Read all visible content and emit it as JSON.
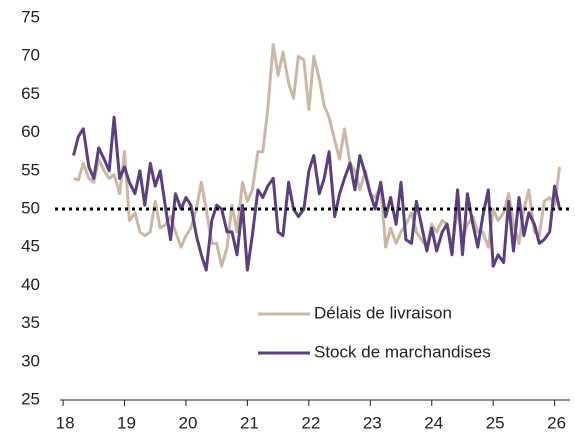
{
  "chart_data": {
    "type": "line",
    "x": [
      18.17,
      18.25,
      18.33,
      18.42,
      18.5,
      18.58,
      18.67,
      18.75,
      18.83,
      18.92,
      19.0,
      19.08,
      19.17,
      19.25,
      19.33,
      19.42,
      19.5,
      19.58,
      19.67,
      19.75,
      19.83,
      19.92,
      20.0,
      20.08,
      20.17,
      20.25,
      20.33,
      20.42,
      20.5,
      20.58,
      20.67,
      20.75,
      20.83,
      20.92,
      21.0,
      21.08,
      21.17,
      21.25,
      21.33,
      21.42,
      21.5,
      21.58,
      21.67,
      21.75,
      21.83,
      21.92,
      22.0,
      22.08,
      22.17,
      22.25,
      22.33,
      22.42,
      22.5,
      22.58,
      22.67,
      22.75,
      22.83,
      22.92,
      23.0,
      23.08,
      23.17,
      23.25,
      23.33,
      23.42,
      23.5,
      23.58,
      23.67,
      23.75,
      23.83,
      23.92,
      24.0,
      24.08,
      24.17,
      24.25,
      24.33,
      24.42,
      24.5,
      24.58,
      24.67,
      24.75,
      24.83,
      24.92,
      25.0,
      25.08,
      25.17,
      25.25,
      25.33,
      25.42,
      25.5,
      25.58,
      25.67,
      25.75,
      25.83,
      25.92,
      26.0,
      26.08
    ],
    "series": [
      {
        "name": "Délais de livraison",
        "color": "#cbb8a4",
        "values": [
          54,
          53.8,
          56,
          54,
          53.5,
          56.5,
          55,
          54,
          54.5,
          52,
          57.5,
          48.5,
          49.5,
          47,
          46.5,
          47,
          51,
          47.5,
          48,
          49,
          47,
          45,
          46.5,
          47.5,
          50,
          53.5,
          50,
          45.5,
          45.5,
          42.5,
          45,
          50.5,
          47,
          53.5,
          51,
          52.5,
          57.5,
          57.5,
          63,
          71.5,
          67.5,
          70.5,
          66.5,
          64.5,
          70,
          69.5,
          63,
          70,
          67,
          63.5,
          62,
          59,
          56.5,
          60.5,
          56,
          55,
          52.5,
          55,
          52,
          51.5,
          53,
          45,
          47.5,
          45.5,
          47,
          48,
          49.5,
          47,
          46,
          45,
          48,
          47,
          48.5,
          48,
          45,
          50,
          46,
          48,
          49,
          47,
          47,
          45,
          50,
          48.5,
          49.5,
          52,
          48,
          45.5,
          50,
          52.5,
          47,
          46.5,
          51,
          51.5,
          50.5,
          55.5
        ]
      },
      {
        "name": "Stock de marchandises",
        "color": "#5b3f80",
        "values": [
          57,
          59.5,
          60.5,
          55.5,
          54,
          58,
          56.5,
          55,
          62,
          54,
          55.5,
          53.5,
          52,
          55,
          50.5,
          56,
          53,
          55,
          50,
          46,
          52,
          50,
          51.5,
          50.5,
          46.5,
          44,
          42,
          48.5,
          50.5,
          50,
          47,
          47,
          44,
          50.5,
          42,
          46.5,
          52.5,
          51.5,
          53,
          54,
          47,
          46.5,
          53.5,
          50,
          49,
          50,
          55,
          57,
          52,
          54,
          57.5,
          49,
          52,
          54,
          56,
          52.5,
          57,
          54.5,
          52,
          50,
          53.5,
          49,
          51.5,
          48,
          53.5,
          46,
          45.5,
          51,
          48,
          44.5,
          47.5,
          44.5,
          47,
          48,
          44,
          52.5,
          44,
          52,
          48,
          45,
          49,
          52.5,
          42.5,
          44,
          43,
          51,
          44.5,
          51.5,
          46.5,
          49.5,
          48,
          45.5,
          46,
          47,
          53,
          50
        ]
      }
    ],
    "xlim": [
      17.95,
      26.25
    ],
    "xticks": [
      18,
      19,
      20,
      21,
      22,
      23,
      24,
      25,
      26
    ],
    "ylim": [
      25,
      75
    ],
    "yticks": [
      25,
      30,
      35,
      40,
      45,
      50,
      55,
      60,
      65,
      70,
      75
    ],
    "hline": 50
  }
}
